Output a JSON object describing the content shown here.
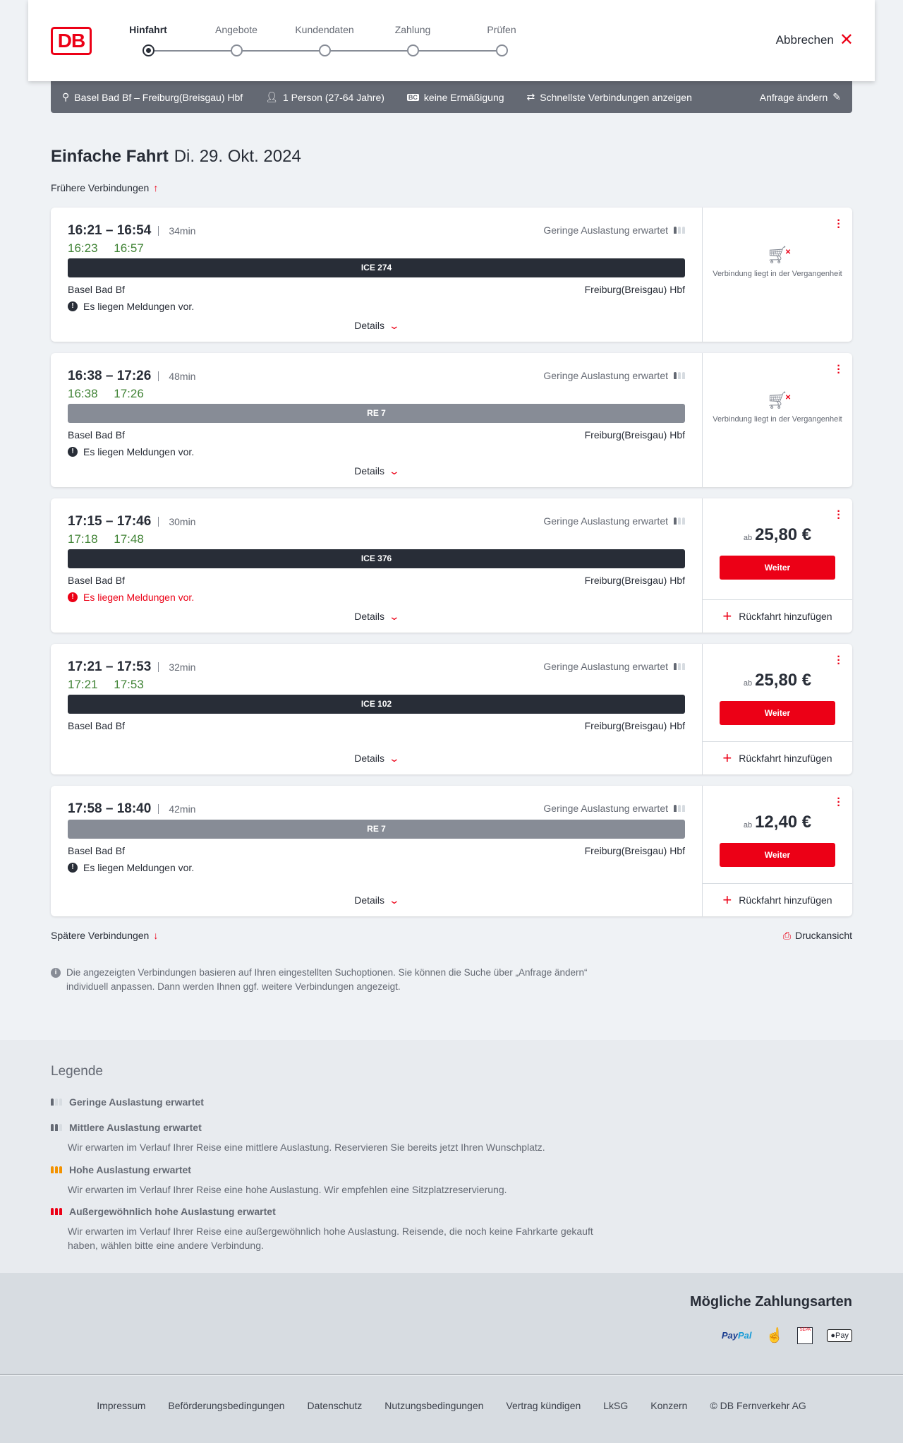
{
  "header": {
    "logo": "DB",
    "steps": [
      "Hinfahrt",
      "Angebote",
      "Kundendaten",
      "Zahlung",
      "Prüfen"
    ],
    "active_step": 0,
    "cancel": "Abbrechen"
  },
  "search": {
    "route": "Basel Bad Bf – Freiburg(Breisgau) Hbf",
    "passengers": "1 Person (27-64 Jahre)",
    "discount_badge": "BC",
    "discount": "keine Ermäßigung",
    "fastest": "Schnellste Verbindungen anzeigen",
    "edit": "Anfrage ändern"
  },
  "title": {
    "type": "Einfache Fahrt",
    "date": "Di. 29. Okt. 2024"
  },
  "earlier": "Frühere Verbindungen",
  "later": "Spätere Verbindungen",
  "print": "Druckansicht",
  "connections": [
    {
      "times": "16:21 – 16:54",
      "duration": "34min",
      "realtime": "16:23 16:57",
      "load": "Geringe Auslastung erwartet",
      "train": "ICE 274",
      "from": "Basel Bad Bf",
      "to": "Freiburg(Breisgau) Hbf",
      "message": "Es liegen Meldungen vor.",
      "details": "Details",
      "past": "Verbindung liegt in der Vergangenheit"
    },
    {
      "times": "16:38 – 17:26",
      "duration": "48min",
      "realtime": "16:38 17:26",
      "load": "Geringe Auslastung erwartet",
      "train": "RE 7",
      "from": "Basel Bad Bf",
      "to": "Freiburg(Breisgau) Hbf",
      "message": "Es liegen Meldungen vor.",
      "details": "Details",
      "past": "Verbindung liegt in der Vergangenheit"
    },
    {
      "times": "17:15 – 17:46",
      "duration": "30min",
      "realtime": "17:18 17:48",
      "load": "Geringe Auslastung erwartet",
      "train": "ICE 376",
      "from": "Basel Bad Bf",
      "to": "Freiburg(Breisgau) Hbf",
      "message": "Es liegen Meldungen vor.",
      "details": "Details",
      "price_prefix": "ab",
      "price": "25,80 €",
      "button": "Weiter",
      "return": "Rückfahrt hinzufügen"
    },
    {
      "times": "17:21 – 17:53",
      "duration": "32min",
      "realtime": "17:21 17:53",
      "load": "Geringe Auslastung erwartet",
      "train": "ICE 102",
      "from": "Basel Bad Bf",
      "to": "Freiburg(Breisgau) Hbf",
      "details": "Details",
      "price_prefix": "ab",
      "price": "25,80 €",
      "button": "Weiter",
      "return": "Rückfahrt hinzufügen"
    },
    {
      "times": "17:58 – 18:40",
      "duration": "42min",
      "load": "Geringe Auslastung erwartet",
      "train": "RE 7",
      "from": "Basel Bad Bf",
      "to": "Freiburg(Breisgau) Hbf",
      "message": "Es liegen Meldungen vor.",
      "details": "Details",
      "price_prefix": "ab",
      "price": "12,40 €",
      "button": "Weiter",
      "return": "Rückfahrt hinzufügen"
    }
  ],
  "note": "Die angezeigten Verbindungen basieren auf Ihren eingestellten Suchoptionen. Sie können die Suche über „Anfrage ändern“ individuell anpassen. Dann werden Ihnen ggf. weitere Verbindungen angezeigt.",
  "legend": {
    "title": "Legende",
    "items": [
      {
        "label": "Geringe Auslastung erwartet"
      },
      {
        "label": "Mittlere Auslastung erwartet",
        "text": "Wir erwarten im Verlauf Ihrer Reise eine mittlere Auslastung. Reservieren Sie bereits jetzt Ihren Wunschplatz."
      },
      {
        "label": "Hohe Auslastung erwartet",
        "text": "Wir erwarten im Verlauf Ihrer Reise eine hohe Auslastung. Wir empfehlen eine Sitzplatzreservierung."
      },
      {
        "label": "Außergewöhnlich hohe Auslastung erwartet",
        "text": "Wir erwarten im Verlauf Ihrer Reise eine außergewöhnlich hohe Auslastung. Reisende, die noch keine Fahrkarte gekauft haben, wählen bitte eine andere Verbindung."
      }
    ]
  },
  "payment": {
    "title": "Mögliche Zahlungsarten",
    "paypal_a": "Pay",
    "paypal_b": "Pal",
    "sepa": "SEPA",
    "applepay": "Pay"
  },
  "footer": [
    "Impressum",
    "Beförderungsbedingungen",
    "Datenschutz",
    "Nutzungsbedingungen",
    "Vertrag kündigen",
    "LkSG",
    "Konzern",
    "© DB Fernverkehr AG"
  ],
  "colors": {
    "brand": "#ec0016",
    "realtime": "#408335",
    "ice_bar": "#282d37",
    "re_bar": "#878c96"
  }
}
